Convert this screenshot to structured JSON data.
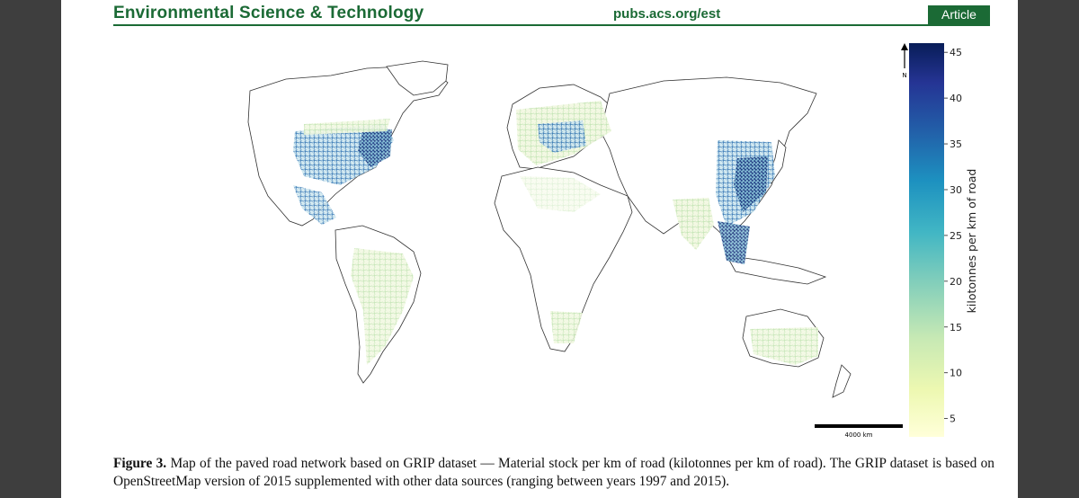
{
  "header": {
    "journal_title": "Environmental Science & Technology",
    "url": "pubs.acs.org/est",
    "article_label": "Article"
  },
  "figure": {
    "north_label": "N",
    "scale_bar_label": "4000 km",
    "colorbar": {
      "label": "kilotonnes per km of road",
      "ticks": [
        "45",
        "40",
        "35",
        "30",
        "25",
        "20",
        "15",
        "10",
        "5"
      ],
      "range": [
        3,
        46
      ],
      "colors": [
        "#ffffd9",
        "#edf8b1",
        "#c7e9b4",
        "#7fcdbb",
        "#41b6c4",
        "#1d91c0",
        "#225ea8",
        "#253494",
        "#081d58"
      ]
    }
  },
  "caption": {
    "label": "Figure 3.",
    "text": " Map of the paved road network based on GRIP dataset — Material stock per km of road (kilotonnes per km of road). The GRIP dataset is based on OpenStreetMap version of 2015 supplemented with other data sources (ranging between years 1997 and 2015)."
  }
}
